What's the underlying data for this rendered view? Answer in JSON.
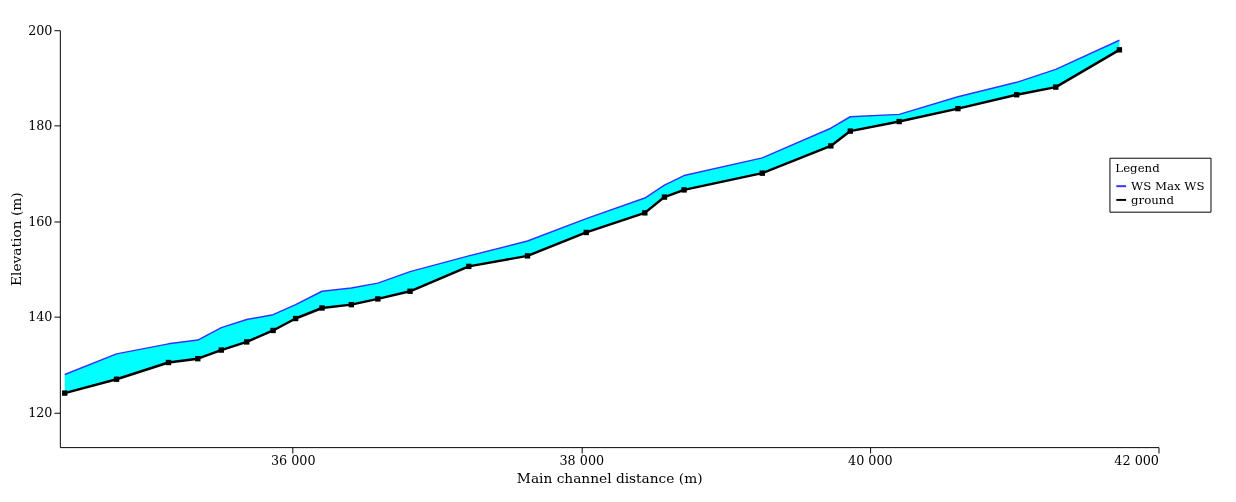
{
  "chart_data": {
    "type": "line",
    "xlabel": "Main channel distance (m)",
    "ylabel": "Elevation (m)",
    "legend_title": "Legend",
    "x": [
      34420,
      34779,
      35139,
      35342,
      35505,
      35681,
      35864,
      36020,
      36203,
      36406,
      36590,
      36813,
      37220,
      37627,
      38034,
      38440,
      38576,
      38712,
      39254,
      39729,
      39864,
      40203,
      40610,
      41017,
      41288,
      41729
    ],
    "series": [
      {
        "name": "WS Max WS",
        "color": "#3333ff",
        "marker": "none",
        "values": [
          128.0,
          132.3,
          134.4,
          135.2,
          137.8,
          139.5,
          140.5,
          142.6,
          145.4,
          146.1,
          147.1,
          149.5,
          152.8,
          155.9,
          160.6,
          164.9,
          167.6,
          169.6,
          173.3,
          179.5,
          181.9,
          182.4,
          186.1,
          189.1,
          191.8,
          197.9
        ],
        "lower": [
          124.1,
          127.0,
          130.5,
          131.3,
          133.1,
          134.8,
          137.2,
          139.7,
          141.9,
          142.6,
          143.8,
          145.4,
          150.6,
          152.8,
          157.7,
          161.8,
          165.1,
          166.6,
          170.1,
          175.8,
          178.9,
          180.9,
          183.6,
          186.5,
          188.1,
          195.9
        ],
        "upper": [
          128.0,
          132.3,
          134.4,
          135.2,
          137.8,
          139.5,
          140.5,
          142.6,
          145.4,
          146.1,
          147.1,
          149.5,
          152.8,
          155.9,
          160.6,
          164.9,
          167.6,
          169.6,
          173.3,
          179.5,
          181.9,
          182.4,
          186.1,
          189.1,
          191.8,
          197.9
        ]
      },
      {
        "name": "ground",
        "color": "#000000",
        "marker": "square",
        "values": [
          124.1,
          127.0,
          130.5,
          131.3,
          133.1,
          134.8,
          137.2,
          139.7,
          141.9,
          142.6,
          143.8,
          145.4,
          150.6,
          152.8,
          157.7,
          161.8,
          165.1,
          166.6,
          170.1,
          175.8,
          178.9,
          180.9,
          183.6,
          186.5,
          188.1,
          195.9
        ]
      }
    ],
    "xlim": [
      34386,
      42000
    ],
    "xticks": [
      {
        "value": 36000,
        "label": "36 000"
      },
      {
        "value": 38000,
        "label": "38 000"
      },
      {
        "value": 40000,
        "label": "40 000"
      },
      {
        "value": 42000,
        "label": "42 000"
      }
    ],
    "ylim": [
      112.8,
      200
    ],
    "yticks": [
      120,
      140,
      160,
      180,
      200
    ],
    "grid": false,
    "legend": "right"
  }
}
